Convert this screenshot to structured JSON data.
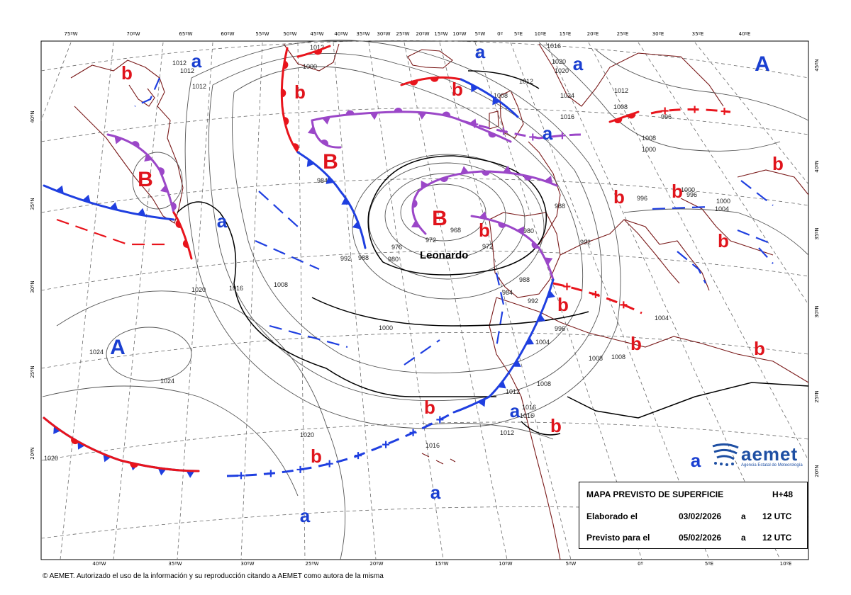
{
  "legend": {
    "title": "MAPA PREVISTO DE SUPERFICIE",
    "lead": "H+48",
    "made_label": "Elaborado el",
    "made_date": "03/02/2026",
    "made_sep": "a",
    "made_time": "12 UTC",
    "valid_label": "Previsto para el",
    "valid_date": "05/02/2026",
    "valid_sep": "a",
    "valid_time": "12 UTC"
  },
  "logo": {
    "name": "aemet",
    "subtitle": "Agencia Estatal de Meteorología"
  },
  "copyright": "© AEMET. Autorizado el uso de la información y su reproducción citando a AEMET como autora de la misma",
  "storm_name": "Leonardo",
  "colors": {
    "front_cold": "#1f3fe0",
    "front_warm": "#e8141c",
    "front_occluded": "#9b47c8",
    "coast": "#7a1a1a",
    "high": "#1a3fd1",
    "low": "#e0141c"
  },
  "top_ticks": [
    "75ºW",
    "70ºW",
    "65ºW",
    "60ºW",
    "55ºW",
    "50ºW",
    "45ºW",
    "40ºW",
    "35ºW",
    "30ºW",
    "25ºW",
    "20ºW",
    "15ºW",
    "10ºW",
    "5ºW",
    "0º",
    "5ºE",
    "10ºE",
    "15ºE",
    "20ºE",
    "25ºE",
    "30ºE",
    "35ºE",
    "40ºE"
  ],
  "bottom_ticks": [
    "40ºW",
    "35ºW",
    "30ºW",
    "25ºW",
    "20ºW",
    "15ºW",
    "10ºW",
    "5ºW",
    "0º",
    "5ºE",
    "10ºE"
  ],
  "left_ticks": [
    "40ºN",
    "35ºN",
    "30ºN",
    "25ºN",
    "20ºN"
  ],
  "right_ticks": [
    "45ºN",
    "40ºN",
    "35ºN",
    "30ºN",
    "25ºN",
    "20ºN"
  ],
  "isobar_labels": [
    "1012",
    "1012",
    "1012",
    "1012",
    "1000",
    "1020",
    "1020",
    "1016",
    "1012",
    "1008",
    "1012",
    "1024",
    "1008",
    "1016",
    "1000",
    "1008",
    "996",
    "984",
    "992",
    "988",
    "980",
    "976",
    "972",
    "968",
    "972",
    "980",
    "988",
    "992",
    "988",
    "984",
    "992",
    "996",
    "1004",
    "996",
    "1000",
    "996",
    "1000",
    "1004",
    "1004",
    "1008",
    "1008",
    "1012",
    "1016",
    "1016",
    "1012",
    "1008",
    "1016",
    "1000",
    "1008",
    "1020",
    "1016",
    "1024",
    "1024",
    "1020",
    "1020"
  ],
  "centers": [
    {
      "type": "a",
      "label": "a"
    },
    {
      "type": "b",
      "label": "b"
    },
    {
      "type": "b",
      "label": "b"
    },
    {
      "type": "a",
      "label": "a"
    },
    {
      "type": "a",
      "label": "a"
    },
    {
      "type": "b",
      "label": "b"
    },
    {
      "type": "b",
      "label": "b"
    },
    {
      "type": "a",
      "label": "a"
    },
    {
      "type": "A",
      "label": "A"
    },
    {
      "type": "B",
      "label": "B"
    },
    {
      "type": "B",
      "label": "B"
    },
    {
      "type": "b",
      "label": "b"
    },
    {
      "type": "b",
      "label": "b"
    },
    {
      "type": "b",
      "label": "b"
    },
    {
      "type": "b",
      "label": "b"
    },
    {
      "type": "B",
      "label": "B"
    },
    {
      "type": "a",
      "label": "a"
    },
    {
      "type": "b",
      "label": "b"
    },
    {
      "type": "b",
      "label": "b"
    },
    {
      "type": "b",
      "label": "b"
    },
    {
      "type": "b",
      "label": "b"
    },
    {
      "type": "b",
      "label": "b"
    },
    {
      "type": "A",
      "label": "A"
    },
    {
      "type": "b",
      "label": "b"
    },
    {
      "type": "a",
      "label": "a"
    },
    {
      "type": "b",
      "label": "b"
    },
    {
      "type": "a",
      "label": "a"
    },
    {
      "type": "a",
      "label": "a"
    },
    {
      "type": "a",
      "label": "a"
    }
  ]
}
